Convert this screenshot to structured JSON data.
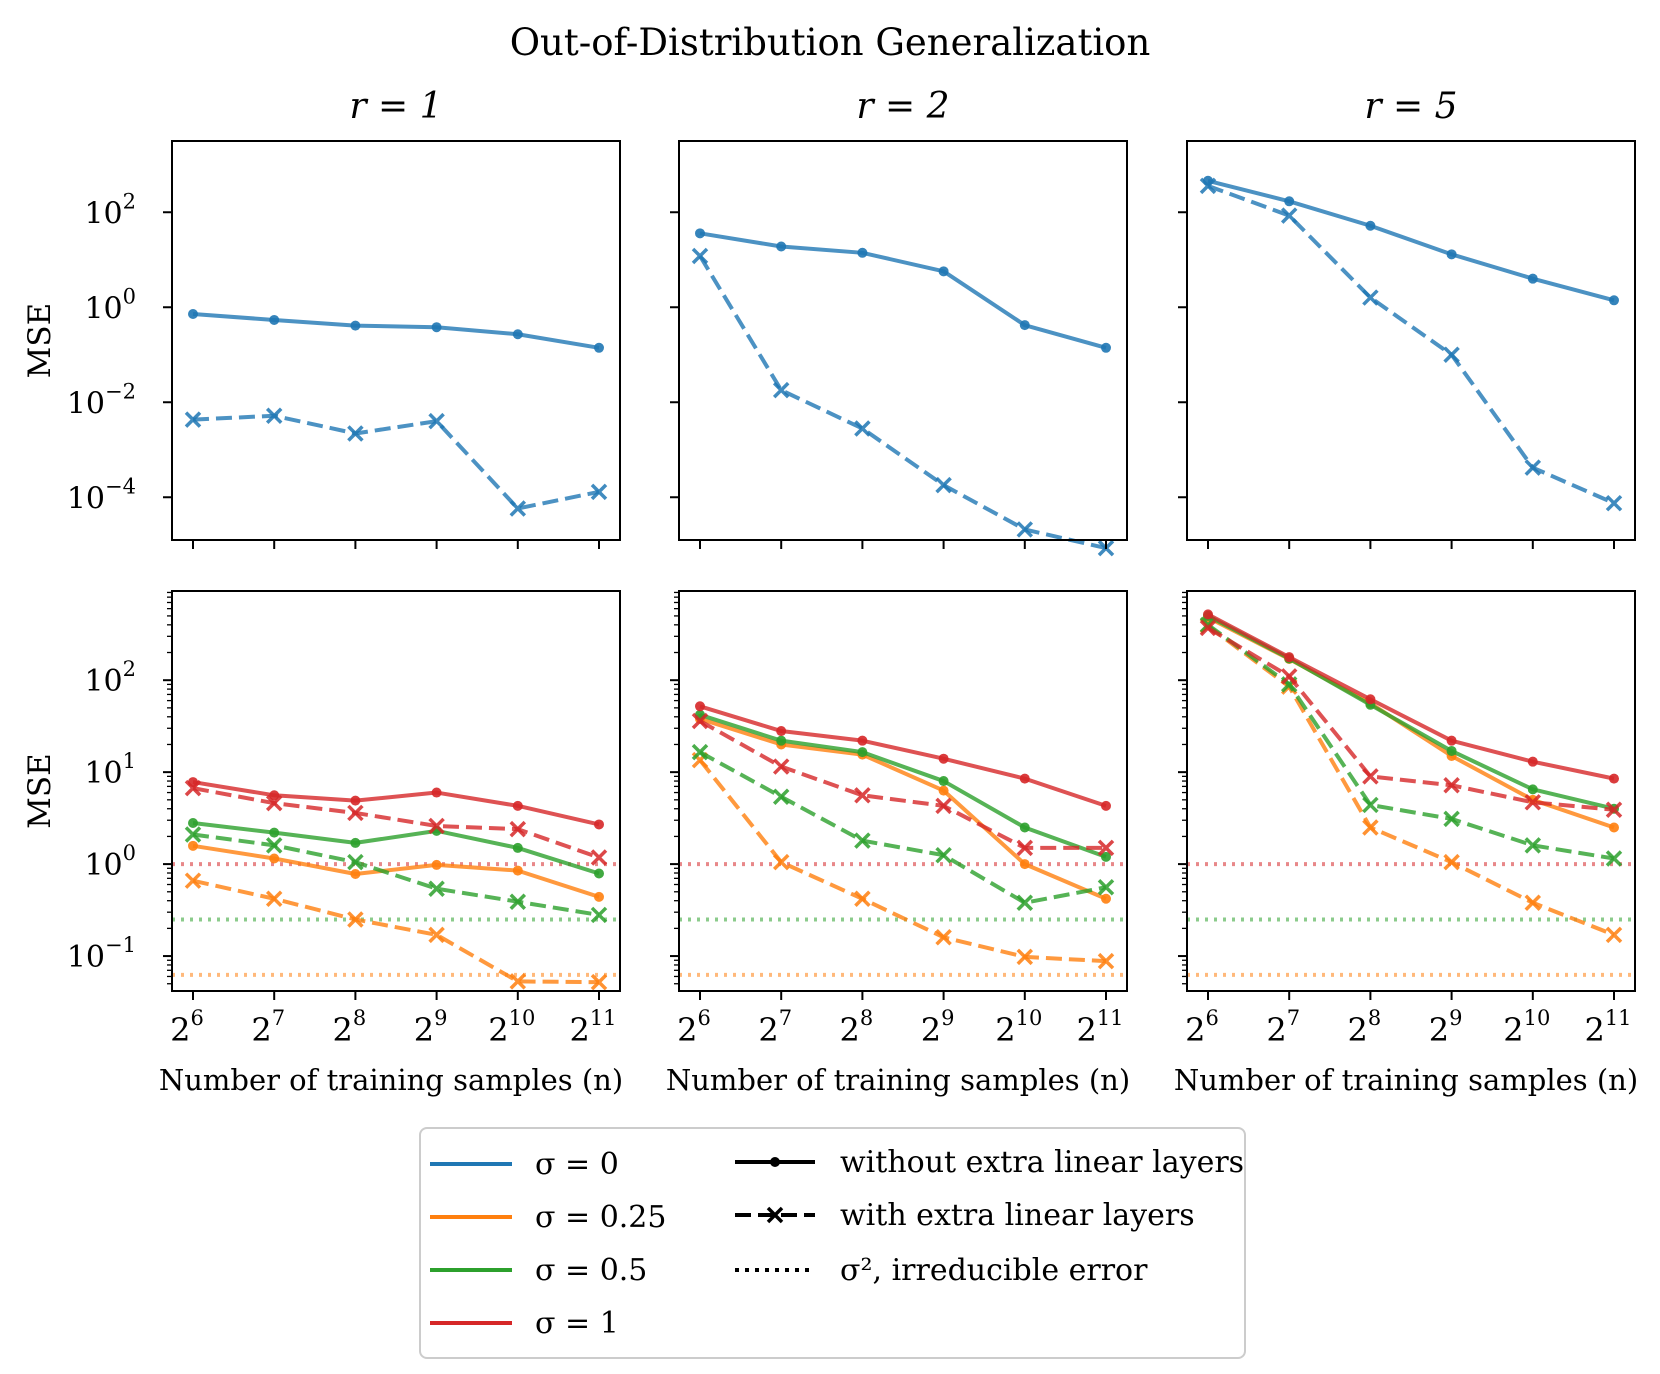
{
  "figure": {
    "title": "Out-of-Distribution Generalization",
    "colors": {
      "s0": "#1f77b4",
      "s025": "#ff7f0e",
      "s05": "#2ca02c",
      "s1": "#d62728"
    }
  },
  "legend": {
    "sigma": [
      {
        "label": "σ = 0",
        "color": "#1f77b4"
      },
      {
        "label": "σ = 0.25",
        "color": "#ff7f0e"
      },
      {
        "label": "σ = 0.5",
        "color": "#2ca02c"
      },
      {
        "label": "σ = 1",
        "color": "#d62728"
      }
    ],
    "styles": [
      {
        "label": "without extra linear layers",
        "style": "solid"
      },
      {
        "label": "with extra linear layers",
        "style": "dashed"
      },
      {
        "label": "σ², irreducible error",
        "style": "dotted"
      }
    ]
  },
  "chart_data": [
    {
      "type": "line",
      "row": "top",
      "title": "r = 1",
      "xlabel": "",
      "ylabel": "MSE",
      "yscale": "log",
      "x": [
        6,
        7,
        8,
        9,
        10,
        11
      ],
      "xticklabels": [],
      "ylim_log10": [
        -4.9,
        3.5
      ],
      "yticks": [
        {
          "label": "10",
          "exp": "2",
          "v": 2
        },
        {
          "label": "10",
          "exp": "0",
          "v": 0
        },
        {
          "label": "10",
          "exp": "−2",
          "v": -2
        },
        {
          "label": "10",
          "exp": "−4",
          "v": -4
        }
      ],
      "series": [
        {
          "name": "σ = 0, without extra linear layers",
          "color": "#1f77b4",
          "style": "solid",
          "marker": "dot",
          "values": [
            0.72,
            0.54,
            0.41,
            0.38,
            0.27,
            0.14
          ]
        },
        {
          "name": "σ = 0, with extra linear layers",
          "color": "#1f77b4",
          "style": "dashed",
          "marker": "x",
          "values": [
            0.0043,
            0.0052,
            0.0022,
            0.004,
            5.8e-05,
            0.00013
          ]
        }
      ],
      "hlines": []
    },
    {
      "type": "line",
      "row": "top",
      "title": "r = 2",
      "xlabel": "",
      "ylabel": "",
      "yscale": "log",
      "x": [
        6,
        7,
        8,
        9,
        10,
        11
      ],
      "xticklabels": [],
      "ylim_log10": [
        -4.9,
        3.5
      ],
      "yticks": [
        {
          "label": "",
          "exp": "",
          "v": 2
        },
        {
          "label": "",
          "exp": "",
          "v": 0
        },
        {
          "label": "",
          "exp": "",
          "v": -2
        },
        {
          "label": "",
          "exp": "",
          "v": -4
        }
      ],
      "series": [
        {
          "name": "σ = 0, without extra linear layers",
          "color": "#1f77b4",
          "style": "solid",
          "marker": "dot",
          "values": [
            36,
            19,
            14,
            5.7,
            0.42,
            0.14
          ]
        },
        {
          "name": "σ = 0, with extra linear layers",
          "color": "#1f77b4",
          "style": "dashed",
          "marker": "x",
          "values": [
            12,
            0.018,
            0.0028,
            0.00018,
            2.1e-05,
            8.5e-06
          ]
        }
      ],
      "hlines": []
    },
    {
      "type": "line",
      "row": "top",
      "title": "r = 5",
      "xlabel": "",
      "ylabel": "",
      "yscale": "log",
      "x": [
        6,
        7,
        8,
        9,
        10,
        11
      ],
      "xticklabels": [],
      "ylim_log10": [
        -4.9,
        3.5
      ],
      "yticks": [
        {
          "label": "",
          "exp": "",
          "v": 2
        },
        {
          "label": "",
          "exp": "",
          "v": 0
        },
        {
          "label": "",
          "exp": "",
          "v": -2
        },
        {
          "label": "",
          "exp": "",
          "v": -4
        }
      ],
      "series": [
        {
          "name": "σ = 0, without extra linear layers",
          "color": "#1f77b4",
          "style": "solid",
          "marker": "dot",
          "values": [
            460,
            170,
            52,
            13,
            4.0,
            1.4
          ]
        },
        {
          "name": "σ = 0, with extra linear layers",
          "color": "#1f77b4",
          "style": "dashed",
          "marker": "x",
          "values": [
            360,
            85,
            1.6,
            0.1,
            0.00042,
            7.5e-05
          ]
        }
      ],
      "hlines": []
    },
    {
      "type": "line",
      "row": "bottom",
      "title": "",
      "xlabel": "Number of training samples (n)",
      "ylabel": "MSE",
      "yscale": "log",
      "x": [
        6,
        7,
        8,
        9,
        10,
        11
      ],
      "xticklabels": [
        {
          "base": "2",
          "exp": "6"
        },
        {
          "base": "2",
          "exp": "7"
        },
        {
          "base": "2",
          "exp": "8"
        },
        {
          "base": "2",
          "exp": "9"
        },
        {
          "base": "2",
          "exp": "10"
        },
        {
          "base": "2",
          "exp": "11"
        }
      ],
      "ylim_log10": [
        -1.38,
        2.97
      ],
      "yticks": [
        {
          "label": "10",
          "exp": "2",
          "v": 2
        },
        {
          "label": "10",
          "exp": "1",
          "v": 1
        },
        {
          "label": "10",
          "exp": "0",
          "v": 0
        },
        {
          "label": "10",
          "exp": "−1",
          "v": -1
        }
      ],
      "series": [
        {
          "name": "σ = 0.25, without",
          "color": "#ff7f0e",
          "style": "solid",
          "marker": "dot",
          "values": [
            1.58,
            1.15,
            0.78,
            0.98,
            0.85,
            0.44
          ]
        },
        {
          "name": "σ = 0.25, with",
          "color": "#ff7f0e",
          "style": "dashed",
          "marker": "x",
          "values": [
            0.66,
            0.42,
            0.25,
            0.17,
            0.053,
            0.052
          ]
        },
        {
          "name": "σ = 0.5, without",
          "color": "#2ca02c",
          "style": "solid",
          "marker": "dot",
          "values": [
            2.8,
            2.2,
            1.7,
            2.3,
            1.5,
            0.79
          ]
        },
        {
          "name": "σ = 0.5, with",
          "color": "#2ca02c",
          "style": "dashed",
          "marker": "x",
          "values": [
            2.1,
            1.6,
            1.05,
            0.54,
            0.39,
            0.28
          ]
        },
        {
          "name": "σ = 1, without",
          "color": "#d62728",
          "style": "solid",
          "marker": "dot",
          "values": [
            7.8,
            5.6,
            4.9,
            6.0,
            4.3,
            2.7
          ]
        },
        {
          "name": "σ = 1, with",
          "color": "#d62728",
          "style": "dashed",
          "marker": "x",
          "values": [
            6.7,
            4.6,
            3.6,
            2.6,
            2.4,
            1.18
          ]
        }
      ],
      "hlines": [
        {
          "name": "σ² = 1",
          "color": "#d62728",
          "value": 1.0
        },
        {
          "name": "σ² = 0.25",
          "color": "#2ca02c",
          "value": 0.25
        },
        {
          "name": "σ² = 0.0625",
          "color": "#ff7f0e",
          "value": 0.0625
        }
      ]
    },
    {
      "type": "line",
      "row": "bottom",
      "title": "",
      "xlabel": "Number of training samples (n)",
      "ylabel": "",
      "yscale": "log",
      "x": [
        6,
        7,
        8,
        9,
        10,
        11
      ],
      "xticklabels": [
        {
          "base": "2",
          "exp": "6"
        },
        {
          "base": "2",
          "exp": "7"
        },
        {
          "base": "2",
          "exp": "8"
        },
        {
          "base": "2",
          "exp": "9"
        },
        {
          "base": "2",
          "exp": "10"
        },
        {
          "base": "2",
          "exp": "11"
        }
      ],
      "ylim_log10": [
        -1.38,
        2.97
      ],
      "yticks": [
        {
          "label": "",
          "exp": "",
          "v": 2
        },
        {
          "label": "",
          "exp": "",
          "v": 1
        },
        {
          "label": "",
          "exp": "",
          "v": 0
        },
        {
          "label": "",
          "exp": "",
          "v": -1
        }
      ],
      "series": [
        {
          "name": "σ = 0.25, without",
          "color": "#ff7f0e",
          "style": "solid",
          "marker": "dot",
          "values": [
            38,
            20,
            15.5,
            6.3,
            1.0,
            0.42
          ]
        },
        {
          "name": "σ = 0.25, with",
          "color": "#ff7f0e",
          "style": "dashed",
          "marker": "x",
          "values": [
            13.5,
            1.05,
            0.42,
            0.16,
            0.098,
            0.088
          ]
        },
        {
          "name": "σ = 0.5, without",
          "color": "#2ca02c",
          "style": "solid",
          "marker": "dot",
          "values": [
            42,
            22,
            16.5,
            8.0,
            2.5,
            1.2
          ]
        },
        {
          "name": "σ = 0.5, with",
          "color": "#2ca02c",
          "style": "dashed",
          "marker": "x",
          "values": [
            16.5,
            5.4,
            1.8,
            1.25,
            0.38,
            0.56
          ]
        },
        {
          "name": "σ = 1, without",
          "color": "#d62728",
          "style": "solid",
          "marker": "dot",
          "values": [
            52,
            28,
            22,
            14,
            8.5,
            4.3
          ]
        },
        {
          "name": "σ = 1, with",
          "color": "#d62728",
          "style": "dashed",
          "marker": "x",
          "values": [
            36,
            11.5,
            5.6,
            4.3,
            1.5,
            1.5
          ]
        }
      ],
      "hlines": [
        {
          "name": "σ² = 1",
          "color": "#d62728",
          "value": 1.0
        },
        {
          "name": "σ² = 0.25",
          "color": "#2ca02c",
          "value": 0.25
        },
        {
          "name": "σ² = 0.0625",
          "color": "#ff7f0e",
          "value": 0.0625
        }
      ]
    },
    {
      "type": "line",
      "row": "bottom",
      "title": "",
      "xlabel": "Number of training samples (n)",
      "ylabel": "",
      "yscale": "log",
      "x": [
        6,
        7,
        8,
        9,
        10,
        11
      ],
      "xticklabels": [
        {
          "base": "2",
          "exp": "6"
        },
        {
          "base": "2",
          "exp": "7"
        },
        {
          "base": "2",
          "exp": "8"
        },
        {
          "base": "2",
          "exp": "9"
        },
        {
          "base": "2",
          "exp": "10"
        },
        {
          "base": "2",
          "exp": "11"
        }
      ],
      "ylim_log10": [
        -1.38,
        2.97
      ],
      "yticks": [
        {
          "label": "",
          "exp": "",
          "v": 2
        },
        {
          "label": "",
          "exp": "",
          "v": 1
        },
        {
          "label": "",
          "exp": "",
          "v": 0
        },
        {
          "label": "",
          "exp": "",
          "v": -1
        }
      ],
      "series": [
        {
          "name": "σ = 0.25, without",
          "color": "#ff7f0e",
          "style": "solid",
          "marker": "dot",
          "values": [
            480,
            170,
            56,
            15,
            5.0,
            2.5
          ]
        },
        {
          "name": "σ = 0.25, with",
          "color": "#ff7f0e",
          "style": "dashed",
          "marker": "x",
          "values": [
            390,
            85,
            2.5,
            1.05,
            0.38,
            0.17
          ]
        },
        {
          "name": "σ = 0.5, without",
          "color": "#2ca02c",
          "style": "solid",
          "marker": "dot",
          "values": [
            500,
            172,
            54,
            17,
            6.5,
            4.0
          ]
        },
        {
          "name": "σ = 0.5, with",
          "color": "#2ca02c",
          "style": "dashed",
          "marker": "x",
          "values": [
            400,
            90,
            4.4,
            3.1,
            1.6,
            1.15
          ]
        },
        {
          "name": "σ = 1, without",
          "color": "#d62728",
          "style": "solid",
          "marker": "dot",
          "values": [
            520,
            178,
            62,
            22,
            13,
            8.5
          ]
        },
        {
          "name": "σ = 1, with",
          "color": "#d62728",
          "style": "dashed",
          "marker": "x",
          "values": [
            370,
            110,
            9.0,
            7.2,
            4.7,
            3.9
          ]
        }
      ],
      "hlines": [
        {
          "name": "σ² = 1",
          "color": "#d62728",
          "value": 1.0
        },
        {
          "name": "σ² = 0.25",
          "color": "#2ca02c",
          "value": 0.25
        },
        {
          "name": "σ² = 0.0625",
          "color": "#ff7f0e",
          "value": 0.0625
        }
      ]
    }
  ]
}
